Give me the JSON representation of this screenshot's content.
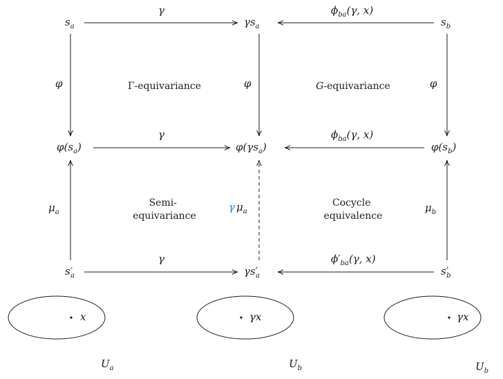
{
  "nodes": {
    "s_a": "s",
    "s_a_sub": "a",
    "gamma_s_a_prefix": "γs",
    "gamma_s_a_sub": "a",
    "s_b": "s",
    "s_b_sub": "b",
    "phi_s_a_pre": "φ(s",
    "phi_s_a_sub": "a",
    "phi_s_a_post": ")",
    "phi_gamma_s_a_pre": "φ(γs",
    "phi_gamma_s_a_sub": "a",
    "phi_gamma_s_a_post": ")",
    "phi_s_b_pre": "φ(s",
    "phi_s_b_sub": "b",
    "phi_s_b_post": ")",
    "s_prime_a": "s′",
    "s_prime_a_sub": "a",
    "gamma_s_prime_a_prefix": "γs′",
    "gamma_s_prime_a_sub": "a",
    "s_prime_b": "s′",
    "s_prime_b_sub": "b"
  },
  "edges": {
    "top_left": "γ",
    "top_right_pre": "ϕ",
    "top_right_sub": "ba",
    "top_right_post": "(γ, x)",
    "phi_left": "φ",
    "phi_mid": "φ",
    "phi_right": "φ",
    "mid_left": "γ",
    "mid_right_pre": "ϕ",
    "mid_right_sub": "ba",
    "mid_right_post": "(γ, x)",
    "mu_a": "μ",
    "mu_a_sub": "a",
    "gamma_mu_gamma": "γ",
    "gamma_mu_mu": "μ",
    "gamma_mu_sub": "a",
    "mu_b": "μ",
    "mu_b_sub": "b",
    "bottom_left": "γ",
    "bottom_right_pre": "ϕ′",
    "bottom_right_sub": "ba",
    "bottom_right_post": "(γ, x)"
  },
  "regions": {
    "gamma_equivariance_symbol": "Γ",
    "gamma_equivariance_rest": "-equivariance",
    "g_equivariance_symbol": "G",
    "g_equivariance_rest": "-equivariance",
    "semi_line1": "Semi-",
    "semi_line2": "equivariance",
    "cocycle_line1": "Cocycle",
    "cocycle_line2": "equivalence"
  },
  "charts": {
    "chart1_point": "x",
    "chart1_label": "U",
    "chart1_label_sub": "a",
    "chart2_point": "γx",
    "chart2_label": "U",
    "chart2_label_sub": "b",
    "chart3_point": "γx",
    "chart3_label": "U",
    "chart3_label_sub": "b"
  },
  "colors": {
    "ink": "#1a1a1a",
    "accent": "#2a7fd4"
  }
}
